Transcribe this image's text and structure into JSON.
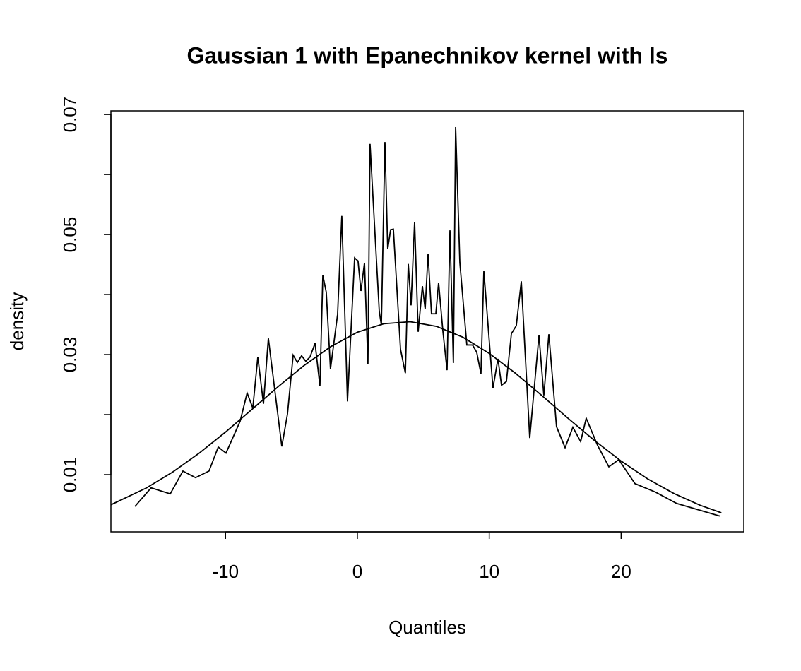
{
  "chart_data": {
    "type": "line",
    "title": "Gaussian 1 with Epanechnikov kernel with ls",
    "xlabel": "Quantiles",
    "ylabel": "density",
    "xlim": [
      -18.69,
      29.3
    ],
    "ylim": [
      0.00047,
      0.0706
    ],
    "xticks": [
      -10,
      0,
      10,
      20
    ],
    "yticks": [
      0.01,
      0.03,
      0.05,
      0.07
    ],
    "minor_yticks": [
      0.02,
      0.04,
      0.06
    ],
    "series": [
      {
        "color": "#000000",
        "x": [
          -16.87,
          -15.64,
          -14.19,
          -13.23,
          -12.27,
          -11.25,
          -10.55,
          -9.96,
          -8.89,
          -8.36,
          -7.93,
          -7.55,
          -7.12,
          -6.75,
          -5.73,
          -5.3,
          -4.87,
          -4.55,
          -4.23,
          -3.91,
          -3.59,
          -3.21,
          -2.84,
          -2.62,
          -2.36,
          -2.04,
          -1.5,
          -1.18,
          -0.75,
          -0.21,
          0.05,
          0.27,
          0.54,
          0.8,
          0.96,
          1.66,
          1.82,
          2.09,
          2.3,
          2.52,
          2.73,
          3.27,
          3.64,
          3.86,
          4.07,
          4.34,
          4.61,
          4.93,
          5.14,
          5.36,
          5.62,
          5.95,
          6.16,
          6.48,
          6.8,
          7.02,
          7.28,
          7.45,
          7.77,
          8.3,
          8.73,
          9.05,
          9.37,
          9.59,
          10.28,
          10.66,
          10.93,
          11.3,
          11.68,
          12.05,
          12.43,
          13.07,
          13.77,
          14.14,
          14.52,
          15.1,
          15.75,
          16.34,
          16.93,
          17.35,
          18.21,
          19.07,
          19.82,
          21.05,
          22.6,
          24.21,
          27.48
        ],
        "values": [
          0.0047,
          0.0078,
          0.0068,
          0.0106,
          0.0095,
          0.0106,
          0.0146,
          0.0136,
          0.0189,
          0.0236,
          0.0211,
          0.0296,
          0.0218,
          0.0327,
          0.0147,
          0.0201,
          0.0299,
          0.0287,
          0.0298,
          0.0289,
          0.0296,
          0.0319,
          0.0248,
          0.0432,
          0.0404,
          0.0276,
          0.0367,
          0.0531,
          0.0222,
          0.0461,
          0.0456,
          0.0406,
          0.0453,
          0.0284,
          0.0651,
          0.0372,
          0.0349,
          0.0654,
          0.0476,
          0.0508,
          0.0509,
          0.0309,
          0.0269,
          0.0451,
          0.0382,
          0.0521,
          0.0338,
          0.0414,
          0.0376,
          0.0468,
          0.0368,
          0.0368,
          0.042,
          0.034,
          0.0274,
          0.0507,
          0.0286,
          0.0679,
          0.0453,
          0.0316,
          0.0316,
          0.0304,
          0.0268,
          0.0439,
          0.0244,
          0.0293,
          0.0249,
          0.0255,
          0.0335,
          0.0348,
          0.0422,
          0.0161,
          0.0332,
          0.0232,
          0.0334,
          0.018,
          0.0145,
          0.0179,
          0.0155,
          0.0194,
          0.0149,
          0.0113,
          0.0125,
          0.0085,
          0.0071,
          0.0052,
          0.0031
        ]
      },
      {
        "color": "#000000",
        "x": [
          -18.7,
          -16,
          -14,
          -12,
          -10,
          -8,
          -6,
          -4,
          -2,
          0,
          2,
          4,
          6,
          8,
          10,
          12,
          14,
          16,
          18,
          20,
          22,
          24,
          26,
          27.6
        ],
        "values": [
          0.00497,
          0.00778,
          0.01044,
          0.01357,
          0.01709,
          0.02086,
          0.02467,
          0.02826,
          0.03135,
          0.03373,
          0.03514,
          0.03548,
          0.0347,
          0.03289,
          0.0302,
          0.02687,
          0.02316,
          0.01934,
          0.01565,
          0.01226,
          0.00931,
          0.00686,
          0.00489,
          0.00365
        ]
      }
    ]
  }
}
